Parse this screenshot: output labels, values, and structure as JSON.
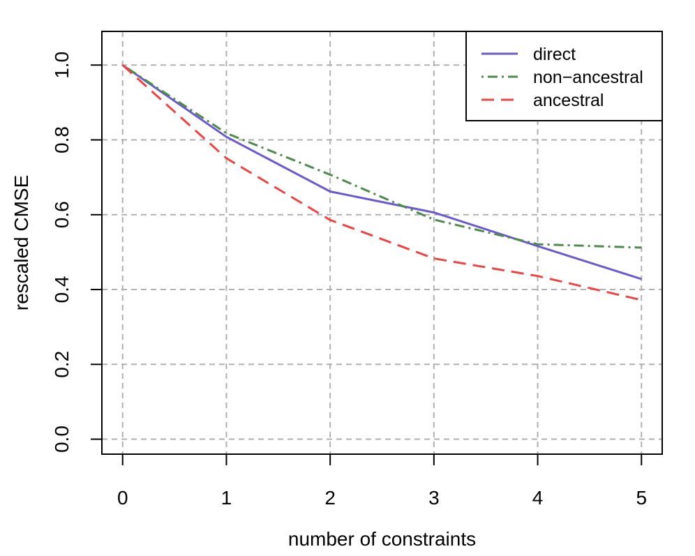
{
  "chart_data": {
    "type": "line",
    "title": "",
    "xlabel": "number of constraints",
    "ylabel": "rescaled CMSE",
    "x": [
      0,
      1,
      2,
      3,
      4,
      5
    ],
    "xlim": [
      -0.2,
      5.2
    ],
    "ylim": [
      -0.04,
      1.09
    ],
    "xticks": [
      0,
      1,
      2,
      3,
      4,
      5
    ],
    "xtick_labels": [
      "0",
      "1",
      "2",
      "3",
      "4",
      "5"
    ],
    "yticks": [
      0.0,
      0.2,
      0.4,
      0.6,
      0.8,
      1.0
    ],
    "ytick_labels": [
      "0.0",
      "0.2",
      "0.4",
      "0.6",
      "0.8",
      "1.0"
    ],
    "grid": true,
    "legend_position": "top-right",
    "series": [
      {
        "name": "direct",
        "color": "#6a5acd",
        "line_style": "solid",
        "values": [
          1.0,
          0.808,
          0.662,
          0.606,
          0.516,
          0.428
        ]
      },
      {
        "name": "non−ancestral",
        "color": "#4e8a4e",
        "line_style": "dashdot",
        "values": [
          1.0,
          0.818,
          0.707,
          0.587,
          0.521,
          0.512
        ]
      },
      {
        "name": "ancestral",
        "color": "#ee4444",
        "line_style": "dashed",
        "values": [
          1.0,
          0.751,
          0.586,
          0.483,
          0.436,
          0.372
        ]
      }
    ]
  }
}
